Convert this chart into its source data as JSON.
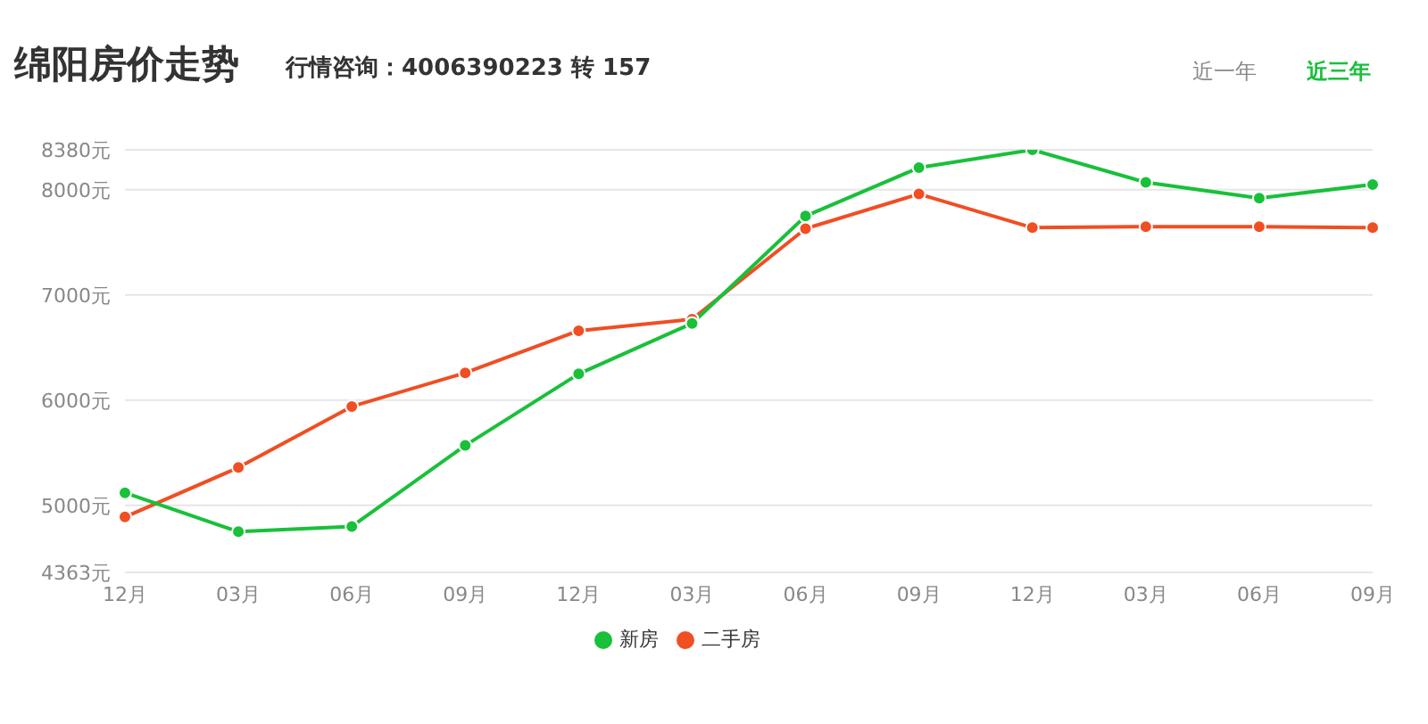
{
  "chart_data": {
    "type": "line",
    "title": "绵阳房价走势",
    "subtitle": "行情咨询：4006390223 转 157",
    "annotations": [
      "近一年",
      "近三年"
    ],
    "categories": [
      "12月",
      "03月",
      "06月",
      "09月",
      "12月",
      "03月",
      "06月",
      "09月",
      "12月",
      "03月",
      "06月",
      "09月"
    ],
    "series": [
      {
        "name": "新房",
        "color": "#19c03a",
        "values": [
          5120,
          4750,
          4800,
          5570,
          6250,
          6730,
          7750,
          8210,
          8380,
          8070,
          7920,
          8050
        ]
      },
      {
        "name": "二手房",
        "color": "#f04e23",
        "values": [
          4890,
          5360,
          5940,
          6260,
          6660,
          6770,
          7630,
          7960,
          7640,
          7650,
          7650,
          7640
        ]
      }
    ],
    "ylim": [
      4363,
      8380
    ],
    "yticks": [
      {
        "value": 4363,
        "label": "4363元"
      },
      {
        "value": 5000,
        "label": "5000元"
      },
      {
        "value": 6000,
        "label": "6000元"
      },
      {
        "value": 7000,
        "label": "7000元"
      },
      {
        "value": 8000,
        "label": "8000元"
      },
      {
        "value": 8380,
        "label": "8380元"
      }
    ],
    "grid": "y",
    "legend": "bottom",
    "marker": "circle",
    "line_style": "solid"
  }
}
